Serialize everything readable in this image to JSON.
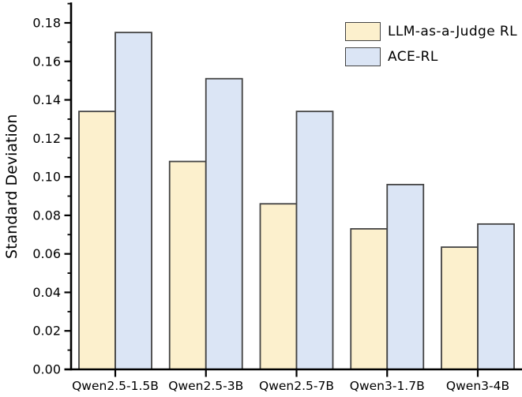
{
  "chart_data": {
    "type": "bar",
    "title": "",
    "xlabel": "",
    "ylabel": "Standard Deviation",
    "categories": [
      "Qwen2.5-1.5B",
      "Qwen2.5-3B",
      "Qwen2.5-7B",
      "Qwen3-1.7B",
      "Qwen3-4B"
    ],
    "series": [
      {
        "name": "LLM-as-a-Judge RL",
        "values": [
          0.134,
          0.108,
          0.086,
          0.073,
          0.0635
        ],
        "fill": "#FCF0CD",
        "stroke": "#434343"
      },
      {
        "name": "ACE-RL",
        "values": [
          0.175,
          0.151,
          0.134,
          0.096,
          0.0755
        ],
        "fill": "#DBE5F5",
        "stroke": "#434343"
      }
    ],
    "ylim": [
      0,
      0.19
    ],
    "yticks": [
      0.0,
      0.02,
      0.04,
      0.06,
      0.08,
      0.1,
      0.12,
      0.14,
      0.16,
      0.18
    ],
    "ytick_decimals": 2,
    "minor_tick_interval": 0.01,
    "grid": "off",
    "legend_position": "top-right",
    "axis_color": "#000000",
    "text_color": "#000000",
    "background_color": "#ffffff"
  }
}
